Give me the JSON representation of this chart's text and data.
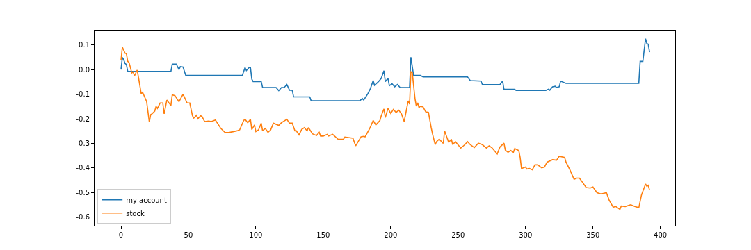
{
  "chart_data": {
    "type": "line",
    "xlim": [
      -19.6,
      411
    ],
    "ylim": [
      -0.634,
      0.158
    ],
    "xticks": [
      0,
      50,
      100,
      150,
      200,
      250,
      300,
      350,
      400
    ],
    "yticks": [
      {
        "value": -0.6,
        "label": "-0.6"
      },
      {
        "value": -0.5,
        "label": "-0.5"
      },
      {
        "value": -0.4,
        "label": "-0.4"
      },
      {
        "value": -0.3,
        "label": "-0.3"
      },
      {
        "value": -0.2,
        "label": "-0.2"
      },
      {
        "value": -0.1,
        "label": "-0.1"
      },
      {
        "value": 0,
        "label": "0.0"
      },
      {
        "value": 0.1,
        "label": "0.1"
      }
    ],
    "grid": false,
    "legend": "bottom left",
    "line_style": "solid",
    "marker": "none",
    "series": [
      {
        "name": "my account",
        "color": "#1f77b4",
        "x": [
          0,
          1,
          2,
          3,
          4,
          5,
          37,
          38,
          41,
          43,
          44,
          46,
          48,
          90,
          92,
          93,
          95,
          96,
          97,
          98,
          104,
          105,
          115,
          117,
          119,
          121,
          123,
          125,
          127,
          128,
          140,
          141,
          177,
          179,
          180,
          183,
          185,
          187,
          188,
          191,
          193,
          195,
          196,
          198,
          199,
          201,
          203,
          205,
          207,
          214,
          215,
          217,
          222,
          224,
          257,
          259,
          267,
          268,
          281,
          283,
          284,
          292,
          293,
          315,
          317,
          318,
          320,
          322,
          323,
          325,
          326,
          330,
          384,
          385,
          387,
          389,
          390,
          391,
          392
        ],
        "values": [
          0,
          0.049,
          0.04,
          0.025,
          0.02,
          -0.008,
          -0.008,
          0.022,
          0.022,
          0,
          0.012,
          0.01,
          -0.024,
          -0.024,
          0.008,
          -0.004,
          0.008,
          0.008,
          -0.039,
          -0.049,
          -0.049,
          -0.073,
          -0.073,
          -0.086,
          -0.073,
          -0.073,
          -0.061,
          -0.084,
          -0.084,
          -0.111,
          -0.111,
          -0.127,
          -0.127,
          -0.118,
          -0.124,
          -0.099,
          -0.077,
          -0.045,
          -0.064,
          -0.049,
          -0.036,
          -0.005,
          -0.049,
          -0.036,
          -0.066,
          -0.058,
          -0.07,
          -0.061,
          -0.073,
          -0.073,
          0.05,
          -0.024,
          -0.024,
          -0.03,
          -0.03,
          -0.045,
          -0.047,
          -0.061,
          -0.061,
          -0.047,
          -0.08,
          -0.08,
          -0.085,
          -0.085,
          -0.08,
          -0.084,
          -0.07,
          -0.068,
          -0.073,
          -0.07,
          -0.047,
          -0.056,
          -0.056,
          0.033,
          0.033,
          0.125,
          0.105,
          0.103,
          0.07
        ]
      },
      {
        "name": "stock",
        "color": "#ff7f0e",
        "x": [
          0,
          1,
          3,
          4,
          5,
          6,
          8,
          9,
          10,
          12,
          13,
          15,
          16,
          19,
          21,
          22,
          23,
          25,
          26,
          27,
          29,
          31,
          32,
          34,
          37,
          38,
          40,
          43,
          46,
          49,
          51,
          53,
          54,
          56,
          57,
          59,
          60,
          62,
          65,
          67,
          70,
          74,
          77,
          80,
          86,
          88,
          91,
          92,
          94,
          96,
          97,
          99,
          100,
          102,
          104,
          105,
          107,
          109,
          111,
          113,
          117,
          119,
          123,
          125,
          127,
          129,
          130,
          132,
          134,
          136,
          138,
          139,
          142,
          145,
          147,
          148,
          150,
          153,
          154,
          157,
          161,
          165,
          166,
          172,
          174,
          178,
          180,
          181,
          184,
          185,
          187,
          189,
          192,
          193,
          195,
          196,
          198,
          200,
          202,
          204,
          206,
          208,
          210,
          211,
          213,
          214,
          215,
          216,
          218,
          219,
          220,
          221,
          222,
          224,
          226,
          228,
          230,
          231,
          233,
          234,
          236,
          239,
          240,
          243,
          245,
          246,
          248,
          252,
          255,
          257,
          259,
          262,
          265,
          268,
          271,
          273,
          275,
          279,
          281,
          284,
          285,
          287,
          289,
          291,
          292,
          295,
          296,
          297,
          300,
          301,
          303,
          305,
          307,
          309,
          312,
          314,
          316,
          318,
          320,
          323,
          325,
          329,
          330,
          333,
          336,
          338,
          340,
          342,
          345,
          348,
          350,
          353,
          356,
          360,
          362,
          365,
          367,
          370,
          371,
          374,
          378,
          381,
          384,
          386,
          389,
          390,
          391,
          392
        ],
        "values": [
          0.037,
          0.091,
          0.066,
          0.064,
          0.033,
          0.028,
          -0.014,
          -0.01,
          -0.026,
          -0.002,
          -0.033,
          -0.099,
          -0.092,
          -0.13,
          -0.214,
          -0.183,
          -0.18,
          -0.169,
          -0.15,
          -0.158,
          -0.136,
          -0.136,
          -0.18,
          -0.124,
          -0.146,
          -0.103,
          -0.106,
          -0.131,
          -0.1,
          -0.136,
          -0.136,
          -0.188,
          -0.197,
          -0.186,
          -0.2,
          -0.188,
          -0.19,
          -0.211,
          -0.209,
          -0.211,
          -0.205,
          -0.239,
          -0.255,
          -0.256,
          -0.249,
          -0.245,
          -0.207,
          -0.202,
          -0.216,
          -0.202,
          -0.244,
          -0.225,
          -0.252,
          -0.245,
          -0.218,
          -0.249,
          -0.239,
          -0.255,
          -0.245,
          -0.218,
          -0.227,
          -0.216,
          -0.202,
          -0.218,
          -0.218,
          -0.249,
          -0.249,
          -0.265,
          -0.243,
          -0.236,
          -0.249,
          -0.236,
          -0.261,
          -0.268,
          -0.255,
          -0.27,
          -0.27,
          -0.263,
          -0.27,
          -0.263,
          -0.283,
          -0.283,
          -0.274,
          -0.279,
          -0.31,
          -0.273,
          -0.271,
          -0.273,
          -0.244,
          -0.233,
          -0.207,
          -0.225,
          -0.207,
          -0.188,
          -0.16,
          -0.195,
          -0.158,
          -0.178,
          -0.162,
          -0.174,
          -0.165,
          -0.18,
          -0.211,
          -0.183,
          -0.127,
          -0.141,
          -0.009,
          -0.012,
          -0.117,
          -0.149,
          -0.135,
          -0.155,
          -0.149,
          -0.152,
          -0.172,
          -0.174,
          -0.235,
          -0.261,
          -0.305,
          -0.293,
          -0.283,
          -0.3,
          -0.249,
          -0.296,
          -0.283,
          -0.305,
          -0.293,
          -0.319,
          -0.305,
          -0.293,
          -0.305,
          -0.317,
          -0.299,
          -0.305,
          -0.319,
          -0.31,
          -0.317,
          -0.343,
          -0.315,
          -0.299,
          -0.327,
          -0.336,
          -0.329,
          -0.336,
          -0.321,
          -0.329,
          -0.357,
          -0.402,
          -0.396,
          -0.404,
          -0.402,
          -0.407,
          -0.387,
          -0.387,
          -0.399,
          -0.396,
          -0.376,
          -0.371,
          -0.366,
          -0.368,
          -0.352,
          -0.357,
          -0.376,
          -0.408,
          -0.446,
          -0.441,
          -0.441,
          -0.456,
          -0.479,
          -0.481,
          -0.477,
          -0.5,
          -0.505,
          -0.5,
          -0.53,
          -0.559,
          -0.556,
          -0.568,
          -0.554,
          -0.556,
          -0.549,
          -0.556,
          -0.561,
          -0.509,
          -0.465,
          -0.474,
          -0.47,
          -0.49
        ]
      }
    ]
  }
}
